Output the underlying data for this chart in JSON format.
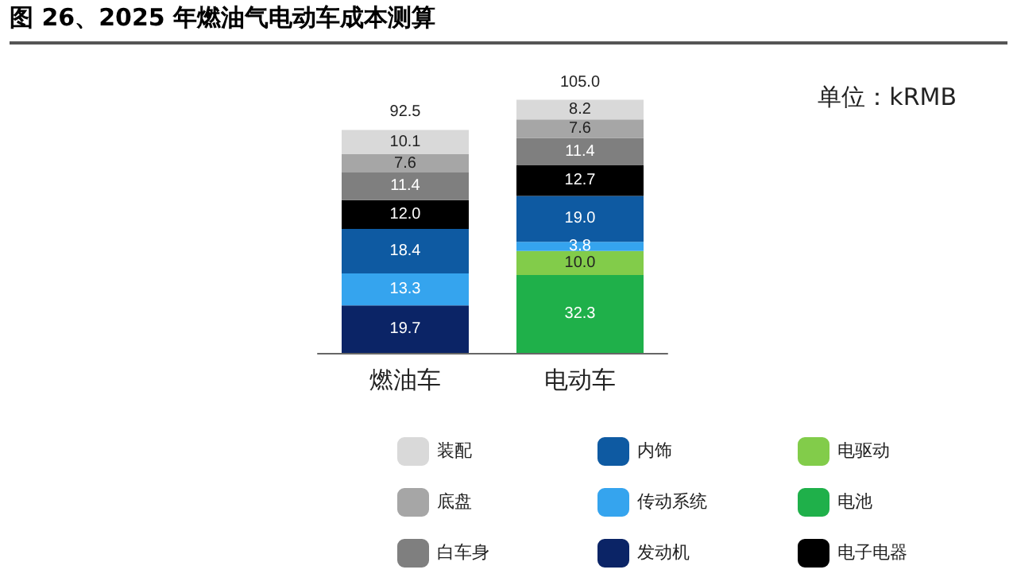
{
  "chart_data": {
    "type": "bar",
    "title": "图 26、2025 年燃油气电动车成本测算",
    "annotations": [
      "单位：kRMB"
    ],
    "categories": [
      "燃油车",
      "电动车"
    ],
    "stacked": true,
    "tick_labels": "x",
    "legend": "bottom",
    "series": [
      {
        "name": "发动机",
        "color": "#0b2466",
        "values": [
          19.7,
          null
        ],
        "value_labels": [
          "19.7",
          null
        ]
      },
      {
        "name": "电池",
        "color": "#1fb04a",
        "values": [
          null,
          32.3
        ],
        "value_labels": [
          null,
          "32.3"
        ]
      },
      {
        "name": "电驱动",
        "color": "#82cc4a",
        "values": [
          null,
          10.0
        ],
        "value_labels": [
          null,
          "10.0"
        ]
      },
      {
        "name": "传动系统",
        "color": "#35a4ee",
        "values": [
          13.3,
          3.8
        ],
        "value_labels": [
          "13.3",
          "3.8"
        ]
      },
      {
        "name": "内饰",
        "color": "#0e5aa2",
        "values": [
          18.4,
          19.0
        ],
        "value_labels": [
          "18.4",
          "19.0"
        ]
      },
      {
        "name": "电子电器",
        "color": "#000000",
        "values": [
          12.0,
          12.7
        ],
        "value_labels": [
          "12.0",
          "12.7"
        ]
      },
      {
        "name": "白车身",
        "color": "#7f7f7f",
        "values": [
          11.4,
          11.4
        ],
        "value_labels": [
          "11.4",
          "11.4"
        ]
      },
      {
        "name": "底盘",
        "color": "#a6a6a6",
        "values": [
          7.6,
          7.6
        ],
        "value_labels": [
          "7.6",
          "7.6"
        ]
      },
      {
        "name": "装配",
        "color": "#d9d9d9",
        "values": [
          10.1,
          8.2
        ],
        "value_labels": [
          "10.1",
          "8.2"
        ]
      }
    ],
    "totals": [
      "92.5",
      "105.0"
    ]
  }
}
